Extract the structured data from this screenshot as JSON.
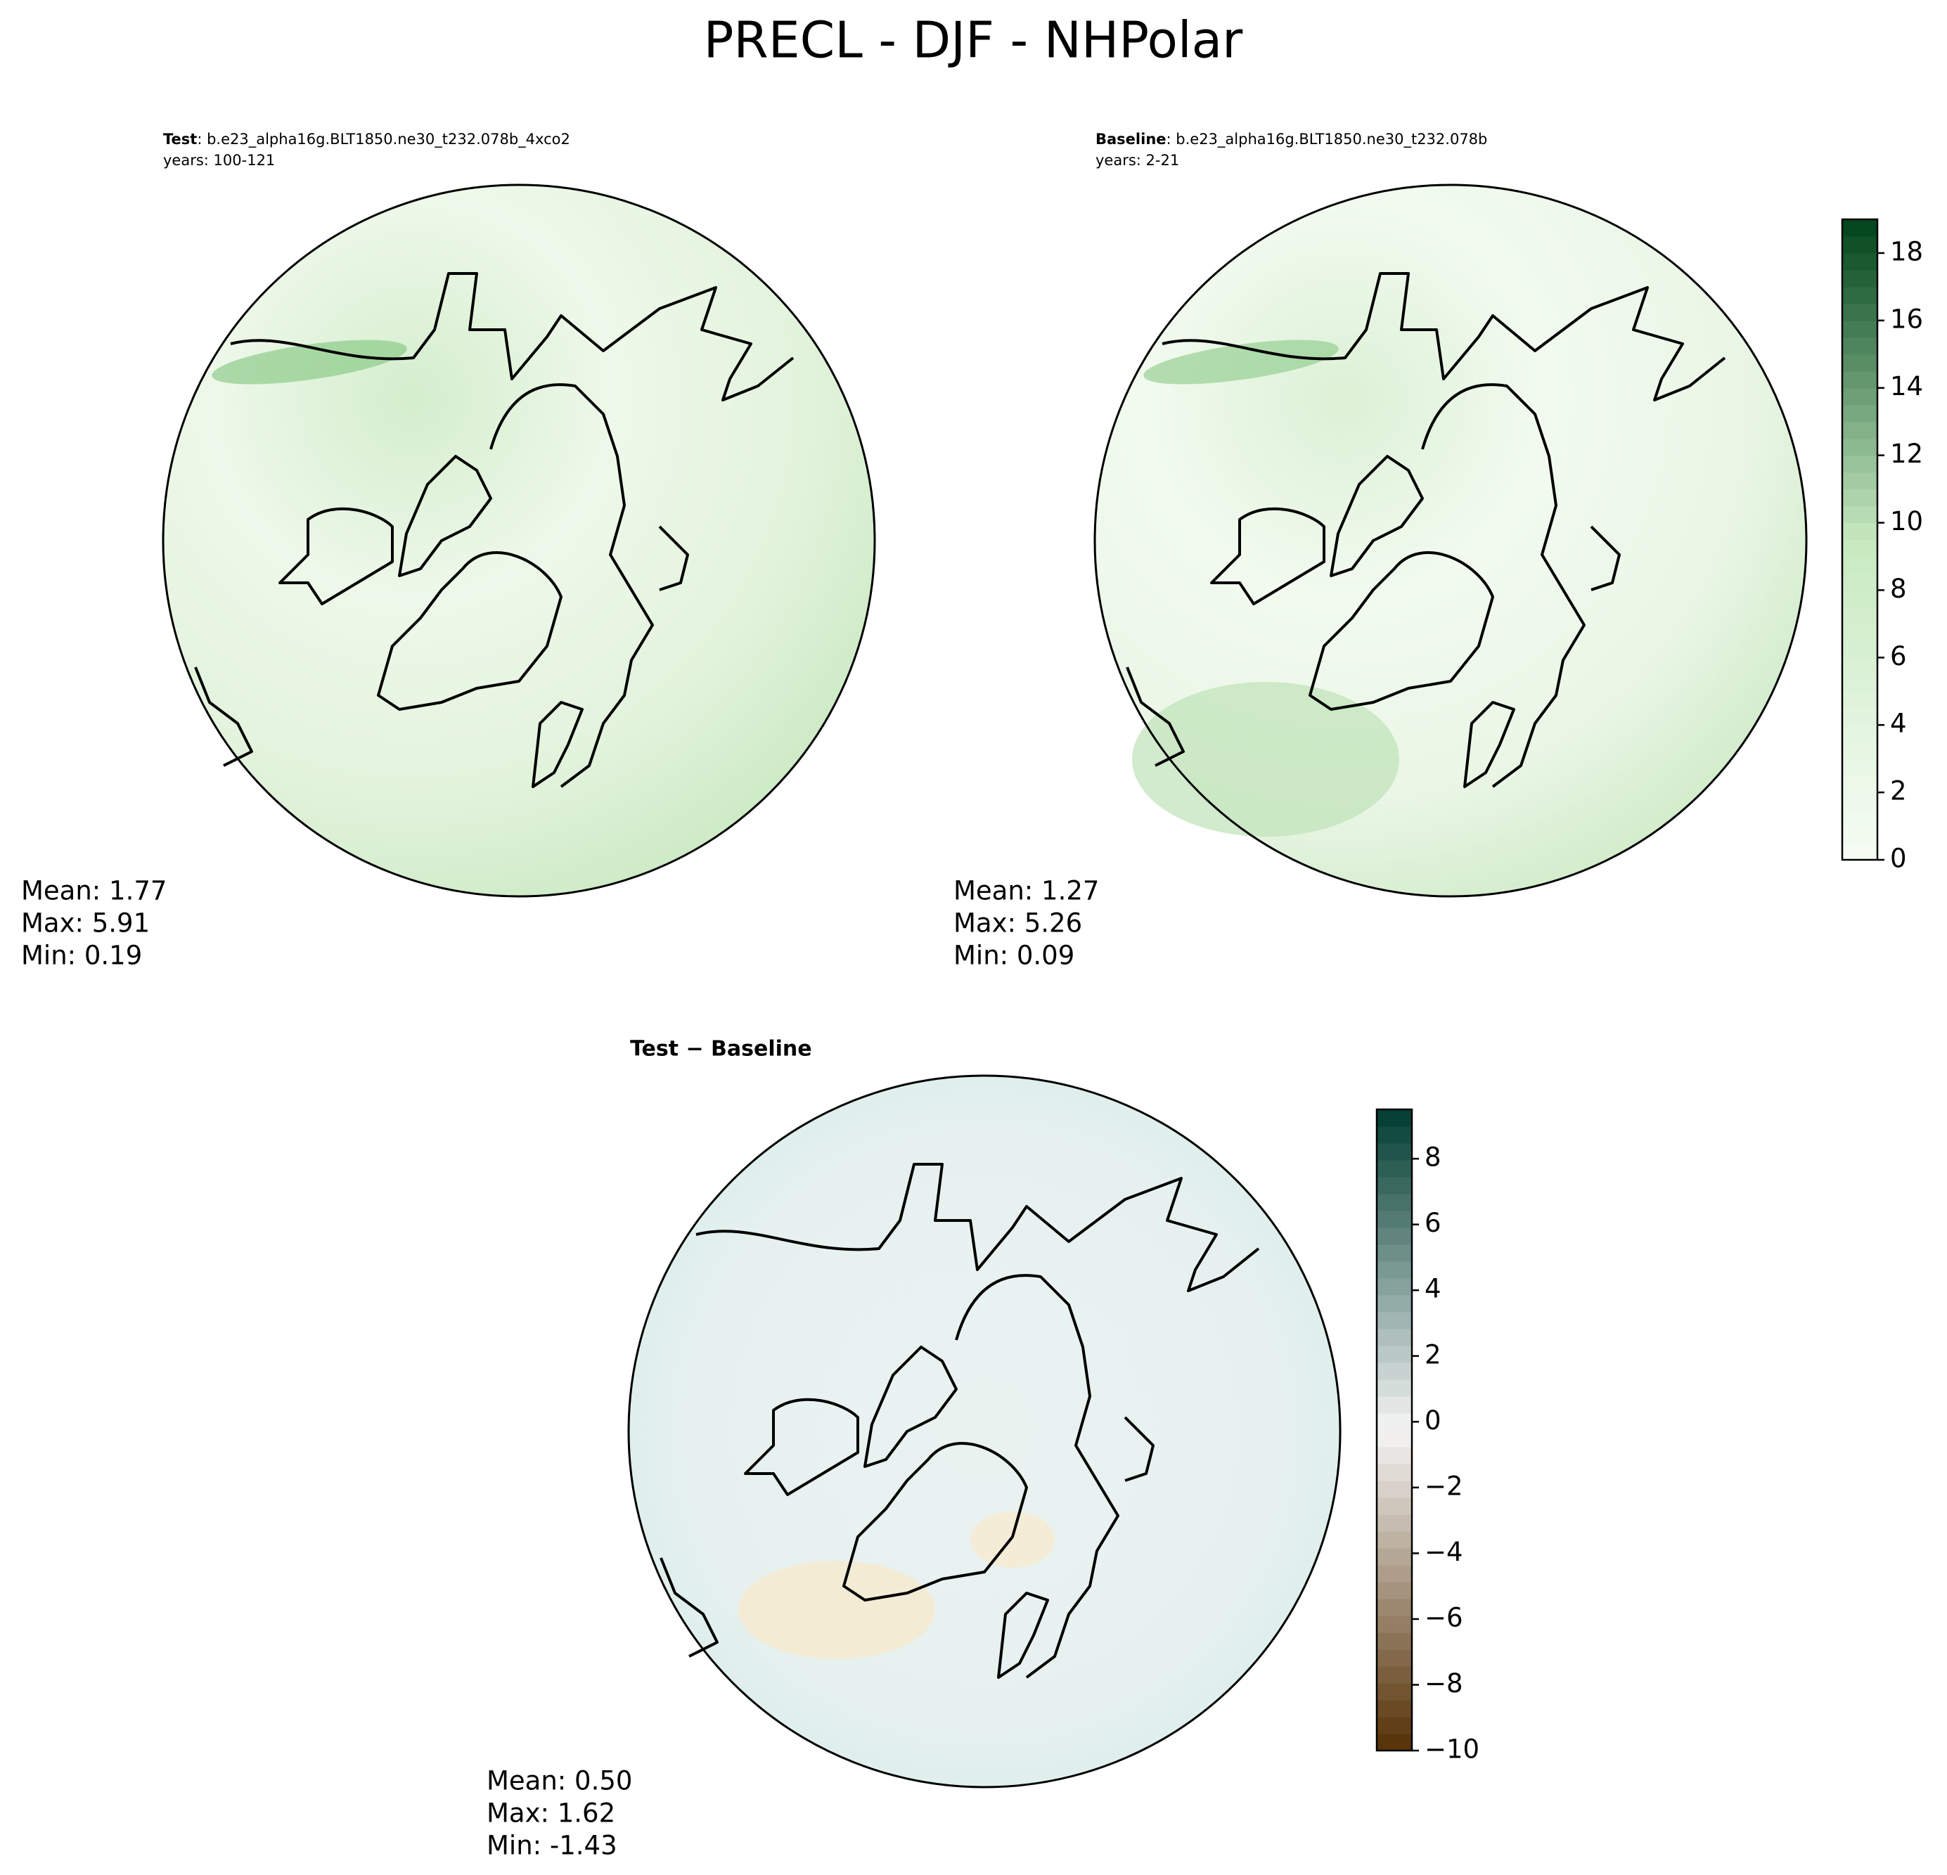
{
  "title": "PRECL - DJF - NHPolar",
  "panels": [
    {
      "label": "Test",
      "case": ": b.e23_alpha16g.BLT1850.ne30_t232.078b_4xco2",
      "years": "years: 100-121",
      "stats": [
        "Mean:  1.77",
        "Max:  5.91",
        "Min:  0.19"
      ]
    },
    {
      "label": "Baseline",
      "case": ": b.e23_alpha16g.BLT1850.ne30_t232.078b",
      "years": "years: 2-21",
      "stats": [
        "Mean:  1.27",
        "Max:  5.26",
        "Min:  0.09"
      ]
    },
    {
      "label": "Test − Baseline",
      "stats": [
        "Mean:  0.50",
        "Max:  1.62",
        "Min: -1.43"
      ]
    }
  ],
  "colorbars": [
    {
      "lim": [
        0,
        19
      ],
      "ticks": [
        0,
        2,
        4,
        6,
        8,
        10,
        12,
        14,
        16,
        18
      ],
      "colors": [
        "#f7fcf5",
        "#c7e9c0",
        "#00441b"
      ]
    },
    {
      "lim": [
        -10,
        9.5
      ],
      "ticks": [
        {
          "value": -10,
          "label": "−10"
        },
        {
          "value": -8,
          "label": "−8"
        },
        {
          "value": -6,
          "label": "−6"
        },
        {
          "value": -4,
          "label": "−4"
        },
        {
          "value": -2,
          "label": "−2"
        },
        0,
        2,
        4,
        6,
        8
      ],
      "colors": [
        "#543005",
        "#f5f5f5",
        "#003c30"
      ]
    }
  ]
}
